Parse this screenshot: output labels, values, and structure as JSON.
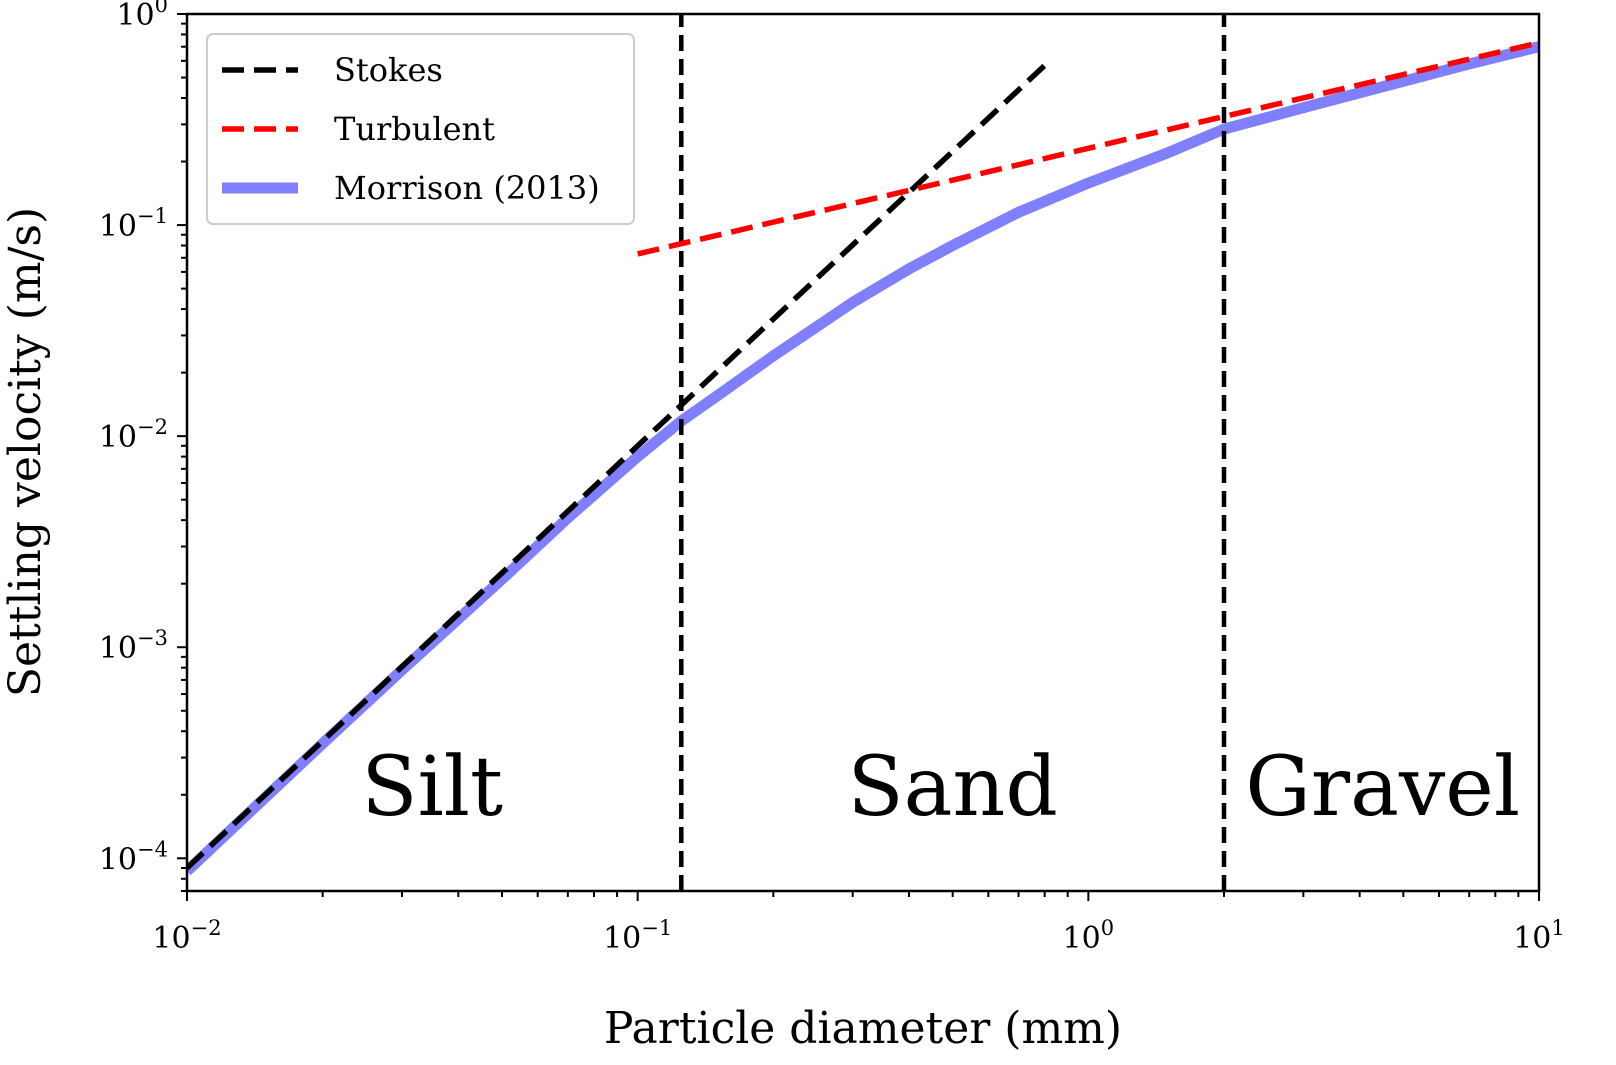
{
  "chart_data": {
    "type": "line",
    "title": "",
    "xlabel": "Particle diameter (mm)",
    "ylabel": "Settling velocity (m/s)",
    "xscale": "log",
    "yscale": "log",
    "xlim": [
      0.01,
      10
    ],
    "ylim": [
      7e-05,
      1
    ],
    "xticks": [
      {
        "value": 0.01,
        "base": "10",
        "exp": "−2"
      },
      {
        "value": 0.1,
        "base": "10",
        "exp": "−1"
      },
      {
        "value": 1,
        "base": "10",
        "exp": "0"
      },
      {
        "value": 10,
        "base": "10",
        "exp": "1"
      }
    ],
    "yticks": [
      {
        "value": 0.0001,
        "base": "10",
        "exp": "−4"
      },
      {
        "value": 0.001,
        "base": "10",
        "exp": "−3"
      },
      {
        "value": 0.01,
        "base": "10",
        "exp": "−2"
      },
      {
        "value": 0.1,
        "base": "10",
        "exp": "−1"
      },
      {
        "value": 1,
        "base": "10",
        "exp": "0"
      }
    ],
    "grid": false,
    "legend_position": "top-left",
    "series": [
      {
        "name": "Stokes",
        "color": "#000000",
        "style": "dashed",
        "x": [
          0.01,
          0.1,
          0.8
        ],
        "y": [
          9e-05,
          0.009,
          0.57
        ]
      },
      {
        "name": "Turbulent",
        "color": "#ff0000",
        "style": "dashed",
        "x": [
          0.1,
          0.4,
          1.0,
          2.0,
          10.0
        ],
        "y": [
          0.073,
          0.146,
          0.231,
          0.327,
          0.73
        ]
      },
      {
        "name": "Morrison (2013)",
        "color": "#7f7fff",
        "style": "solid",
        "x": [
          0.01,
          0.02,
          0.03,
          0.05,
          0.07,
          0.1,
          0.125,
          0.15,
          0.2,
          0.3,
          0.4,
          0.5,
          0.7,
          1.0,
          1.5,
          2.0,
          3.0,
          5.0,
          7.0,
          10.0
        ],
        "y": [
          8.7e-05,
          0.00035,
          0.00078,
          0.0021,
          0.0041,
          0.008,
          0.0118,
          0.0155,
          0.024,
          0.043,
          0.062,
          0.08,
          0.115,
          0.158,
          0.22,
          0.285,
          0.36,
          0.48,
          0.58,
          0.7
        ]
      },
      {
        "name": "",
        "color": "#000000",
        "style": "dashed-vertical",
        "x": [
          0.125,
          0.125
        ],
        "y": [
          7e-05,
          1
        ]
      },
      {
        "name": "",
        "color": "#000000",
        "style": "dashed-vertical",
        "x": [
          2.0,
          2.0
        ],
        "y": [
          7e-05,
          1
        ]
      }
    ],
    "annotations": [
      {
        "text": "Silt",
        "x": 0.035,
        "y": 0.00016
      },
      {
        "text": "Sand",
        "x": 0.5,
        "y": 0.00016
      },
      {
        "text": "Gravel",
        "x": 4.5,
        "y": 0.00016
      }
    ]
  }
}
